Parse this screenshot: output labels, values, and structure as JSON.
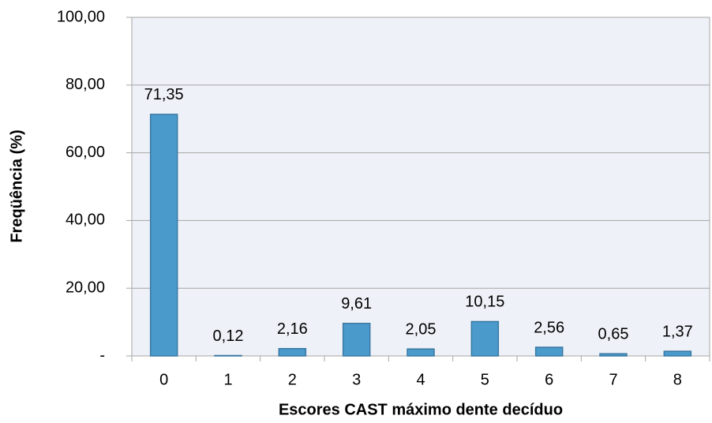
{
  "chart_data": {
    "type": "bar",
    "xlabel": "Escores CAST máximo dente decíduo",
    "ylabel": "Freqüência (%)",
    "categories": [
      "0",
      "1",
      "2",
      "3",
      "4",
      "5",
      "6",
      "7",
      "8"
    ],
    "values": [
      71.35,
      0.12,
      2.16,
      9.61,
      2.05,
      10.15,
      2.56,
      0.65,
      1.37
    ],
    "value_labels": [
      "71,35",
      "0,12",
      "2,16",
      "9,61",
      "2,05",
      "10,15",
      "2,56",
      "0,65",
      "1,37"
    ],
    "color": "#4a9acb",
    "ylim": [
      0,
      100
    ],
    "yticks": [
      {
        "value": 0,
        "label": "-"
      },
      {
        "value": 20,
        "label": "20,00"
      },
      {
        "value": 40,
        "label": "40,00"
      },
      {
        "value": 60,
        "label": "60,00"
      },
      {
        "value": 80,
        "label": "80,00"
      },
      {
        "value": 100,
        "label": "100,00"
      }
    ],
    "grid": true
  }
}
